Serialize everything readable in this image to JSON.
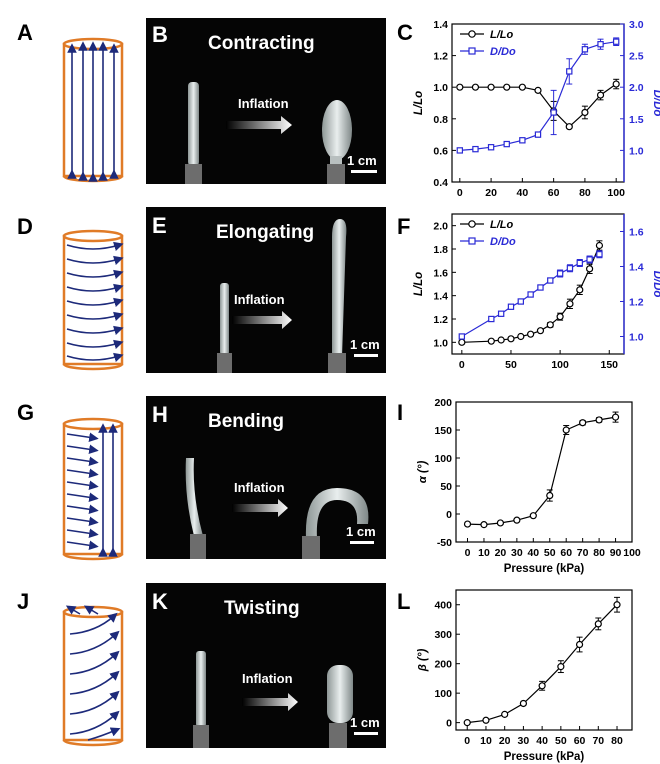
{
  "panel_labels": [
    "A",
    "B",
    "C",
    "D",
    "E",
    "F",
    "G",
    "H",
    "I",
    "J",
    "K",
    "L"
  ],
  "photos": [
    {
      "title": "Contracting",
      "inflation": "Inflation",
      "scale": "1 cm"
    },
    {
      "title": "Elongating",
      "inflation": "Inflation",
      "scale": "1 cm"
    },
    {
      "title": "Bending",
      "inflation": "Inflation",
      "scale": "1 cm"
    },
    {
      "title": "Twisting",
      "inflation": "Inflation",
      "scale": "1 cm"
    }
  ],
  "colors": {
    "orange": "#e07b27",
    "navy": "#1d2a7a",
    "blue": "#2a2ad6",
    "black": "#000000"
  },
  "chart_data": [
    {
      "id": "C",
      "type": "line",
      "xlabel": "",
      "ylabel": "L/Lo",
      "y2label": "D/Do",
      "xlim": [
        -5,
        105
      ],
      "ylim": [
        0.4,
        1.4
      ],
      "y2lim": [
        0.5,
        3.0
      ],
      "xticks": [
        0,
        20,
        40,
        60,
        80,
        100
      ],
      "yticks": [
        0.4,
        0.6,
        0.8,
        1.0,
        1.2,
        1.4
      ],
      "y2ticks": [
        1.0,
        1.5,
        2.0,
        2.5,
        3.0
      ],
      "legend": [
        {
          "label": "L/Lo",
          "marker": "circle"
        },
        {
          "label": "D/Do",
          "marker": "square"
        }
      ],
      "series": [
        {
          "name": "L/Lo",
          "axis": "left",
          "marker": "circle",
          "x": [
            0,
            10,
            20,
            30,
            40,
            50,
            60,
            70,
            80,
            90,
            100
          ],
          "y": [
            1.0,
            1.0,
            1.0,
            1.0,
            1.0,
            0.98,
            0.85,
            0.75,
            0.84,
            0.95,
            1.02
          ],
          "err": [
            0,
            0,
            0,
            0,
            0,
            0.01,
            0.06,
            0.01,
            0.04,
            0.03,
            0.03
          ]
        },
        {
          "name": "D/Do",
          "axis": "right",
          "marker": "square",
          "x": [
            0,
            10,
            20,
            30,
            40,
            50,
            60,
            70,
            80,
            90,
            100
          ],
          "y": [
            1.0,
            1.02,
            1.05,
            1.1,
            1.16,
            1.25,
            1.6,
            2.25,
            2.6,
            2.68,
            2.72
          ],
          "err": [
            0,
            0,
            0,
            0,
            0,
            0.04,
            0.35,
            0.2,
            0.08,
            0.08,
            0.06
          ]
        }
      ]
    },
    {
      "id": "F",
      "type": "line",
      "xlabel": "",
      "ylabel": "L/Lo",
      "y2label": "D/Do",
      "xlim": [
        -10,
        165
      ],
      "ylim": [
        0.9,
        2.1
      ],
      "y2lim": [
        0.9,
        1.7
      ],
      "xticks": [
        0,
        50,
        100,
        150
      ],
      "yticks": [
        1.0,
        1.2,
        1.4,
        1.6,
        1.8,
        2.0
      ],
      "y2ticks": [
        1.0,
        1.2,
        1.4,
        1.6
      ],
      "legend": [
        {
          "label": "L/Lo",
          "marker": "circle"
        },
        {
          "label": "D/Do",
          "marker": "square"
        }
      ],
      "series": [
        {
          "name": "L/Lo",
          "axis": "left",
          "marker": "circle",
          "x": [
            0,
            30,
            40,
            50,
            60,
            70,
            80,
            90,
            100,
            110,
            120,
            130,
            140
          ],
          "y": [
            1.0,
            1.01,
            1.02,
            1.03,
            1.05,
            1.07,
            1.1,
            1.15,
            1.22,
            1.33,
            1.45,
            1.63,
            1.83
          ],
          "err": [
            0,
            0,
            0,
            0,
            0,
            0,
            0.01,
            0.02,
            0.03,
            0.04,
            0.04,
            0.04,
            0.04
          ]
        },
        {
          "name": "D/Do",
          "axis": "right",
          "marker": "square",
          "x": [
            0,
            30,
            40,
            50,
            60,
            70,
            80,
            90,
            100,
            110,
            120,
            130,
            140
          ],
          "y": [
            1.0,
            1.1,
            1.13,
            1.17,
            1.2,
            1.24,
            1.28,
            1.32,
            1.36,
            1.39,
            1.42,
            1.44,
            1.47
          ],
          "err": [
            0,
            0,
            0,
            0,
            0,
            0,
            0.01,
            0.01,
            0.02,
            0.02,
            0.02,
            0.02,
            0.02
          ]
        }
      ]
    },
    {
      "id": "I",
      "type": "line",
      "xlabel": "Pressure (kPa)",
      "ylabel": "α (°)",
      "xlim": [
        -7,
        100
      ],
      "ylim": [
        -50,
        200
      ],
      "xticks": [
        0,
        10,
        20,
        30,
        40,
        50,
        60,
        70,
        80,
        90,
        100
      ],
      "yticks": [
        -50,
        0,
        50,
        100,
        150,
        200
      ],
      "series": [
        {
          "name": "α",
          "marker": "circle",
          "x": [
            0,
            10,
            20,
            30,
            40,
            50,
            60,
            70,
            80,
            90
          ],
          "y": [
            -18,
            -19,
            -16,
            -11,
            -3,
            33,
            150,
            163,
            168,
            173
          ],
          "err": [
            0,
            0,
            0,
            0,
            0,
            10,
            8,
            4,
            4,
            9
          ]
        }
      ]
    },
    {
      "id": "L",
      "type": "line",
      "xlabel": "Pressure (kPa)",
      "ylabel": "β (°)",
      "xlim": [
        -6,
        88
      ],
      "ylim": [
        -25,
        450
      ],
      "xticks": [
        0,
        10,
        20,
        30,
        40,
        50,
        60,
        70,
        80
      ],
      "yticks": [
        0,
        100,
        200,
        300,
        400
      ],
      "series": [
        {
          "name": "β",
          "marker": "circle",
          "x": [
            0,
            10,
            20,
            30,
            40,
            50,
            60,
            70,
            80
          ],
          "y": [
            0,
            8,
            28,
            65,
            125,
            190,
            265,
            335,
            400
          ],
          "err": [
            0,
            0,
            0,
            5,
            15,
            20,
            25,
            20,
            25
          ]
        }
      ]
    }
  ]
}
